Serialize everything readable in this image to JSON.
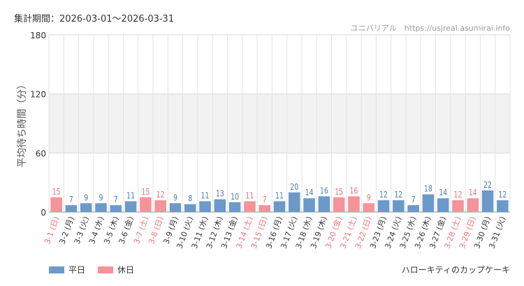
{
  "header": {
    "period": "集計期間：2026-03-01～2026-03-31",
    "source": "ユニバリアル　https://usjreal.asumirai.info"
  },
  "footer": {
    "title": "ハローキティのカップケーキ"
  },
  "legend": [
    {
      "label": "平日",
      "color": "#6b9ac9"
    },
    {
      "label": "休日",
      "color": "#f4939a"
    }
  ],
  "colors": {
    "weekday": "#6b9ac9",
    "holiday": "#f4939a",
    "band": "#f2f2f2",
    "grid": "#e3e3e3"
  },
  "chart_data": {
    "type": "bar",
    "ylabel": "平均待ち時間（分）",
    "xlabel": "",
    "ylim": [
      0,
      180
    ],
    "yticks": [
      0,
      60,
      120,
      180
    ],
    "grid": true,
    "legend_position": "bottom-left",
    "categories": [
      "3-1 (日)",
      "3-2 (月)",
      "3-3 (火)",
      "3-4 (水)",
      "3-5 (木)",
      "3-6 (金)",
      "3-7 (土)",
      "3-8 (日)",
      "3-9 (月)",
      "3-10 (火)",
      "3-11 (水)",
      "3-12 (木)",
      "3-13 (金)",
      "3-14 (土)",
      "3-15 (日)",
      "3-16 (月)",
      "3-17 (火)",
      "3-18 (水)",
      "3-19 (木)",
      "3-20 (金)",
      "3-21 (土)",
      "3-22 (日)",
      "3-23 (月)",
      "3-24 (火)",
      "3-25 (水)",
      "3-26 (木)",
      "3-27 (金)",
      "3-28 (土)",
      "3-29 (日)",
      "3-30 (月)",
      "3-31 (火)"
    ],
    "values": [
      15,
      7,
      9,
      9,
      7,
      11,
      15,
      12,
      9,
      8,
      11,
      13,
      10,
      11,
      7,
      11,
      20,
      14,
      16,
      15,
      16,
      9,
      12,
      12,
      7,
      18,
      14,
      12,
      14,
      22,
      12
    ],
    "series_type": [
      "休日",
      "平日",
      "平日",
      "平日",
      "平日",
      "平日",
      "休日",
      "休日",
      "平日",
      "平日",
      "平日",
      "平日",
      "平日",
      "休日",
      "休日",
      "平日",
      "平日",
      "平日",
      "平日",
      "休日",
      "休日",
      "休日",
      "平日",
      "平日",
      "平日",
      "平日",
      "平日",
      "休日",
      "休日",
      "平日",
      "平日"
    ]
  }
}
